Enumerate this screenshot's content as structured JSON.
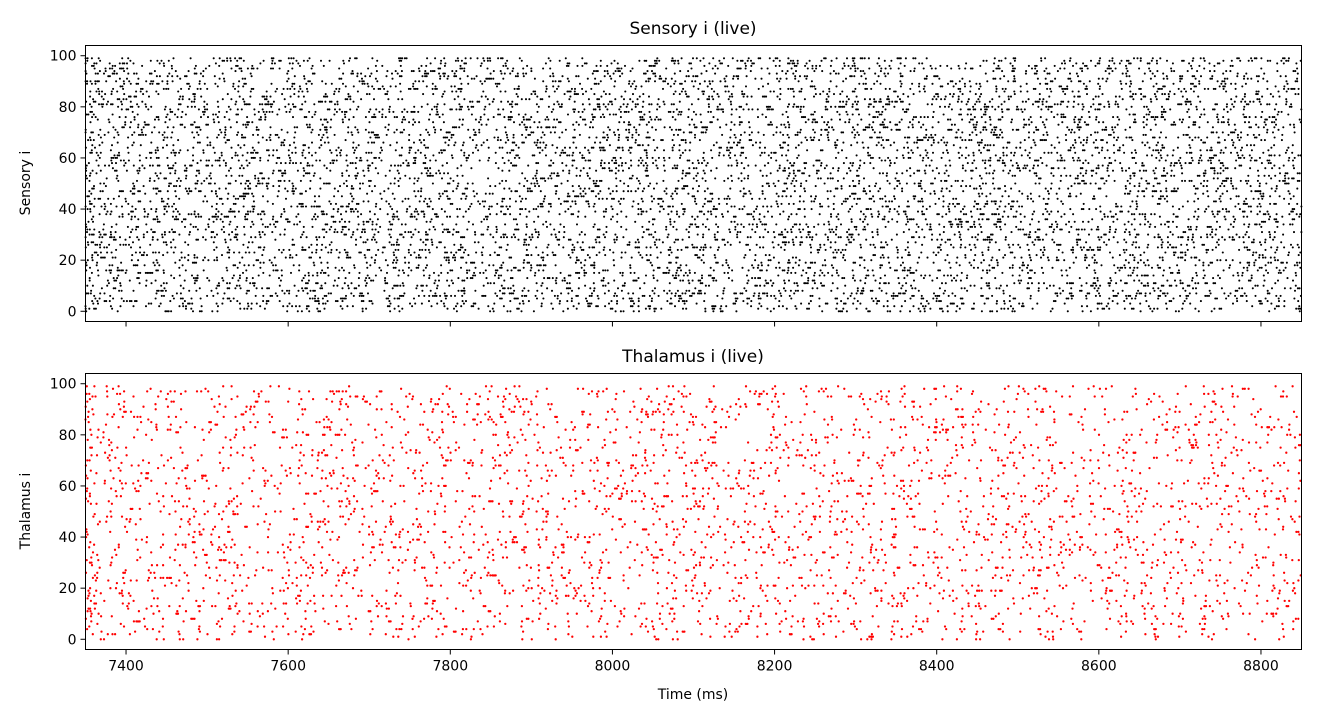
{
  "chart_data": [
    {
      "type": "scatter",
      "title": "Sensory i (live)",
      "ylabel": "Sensory i",
      "xlabel": "",
      "xlim": [
        7350,
        8850
      ],
      "ylim": [
        -4,
        104
      ],
      "xticks": [
        7400,
        7600,
        7800,
        8000,
        8200,
        8400,
        8600,
        8800
      ],
      "xtick_labels_visible": false,
      "yticks": [
        0,
        20,
        40,
        60,
        80,
        100
      ],
      "color": "#000000",
      "neurons": [
        0,
        99
      ],
      "time_range": [
        7350,
        8850
      ],
      "mean_rate_hz": 60,
      "approx_spike_count": 9000
    },
    {
      "type": "scatter",
      "title": "Thalamus i (live)",
      "ylabel": "Thalamus i",
      "xlabel": "Time (ms)",
      "xlim": [
        7350,
        8850
      ],
      "ylim": [
        -4,
        104
      ],
      "xticks": [
        7400,
        7600,
        7800,
        8000,
        8200,
        8400,
        8600,
        8800
      ],
      "xtick_labels_visible": true,
      "yticks": [
        0,
        20,
        40,
        60,
        80,
        100
      ],
      "color": "#ff0000",
      "neurons": [
        0,
        99
      ],
      "time_range": [
        7350,
        8850
      ],
      "mean_rate_hz": 25,
      "approx_spike_count": 3750
    }
  ]
}
